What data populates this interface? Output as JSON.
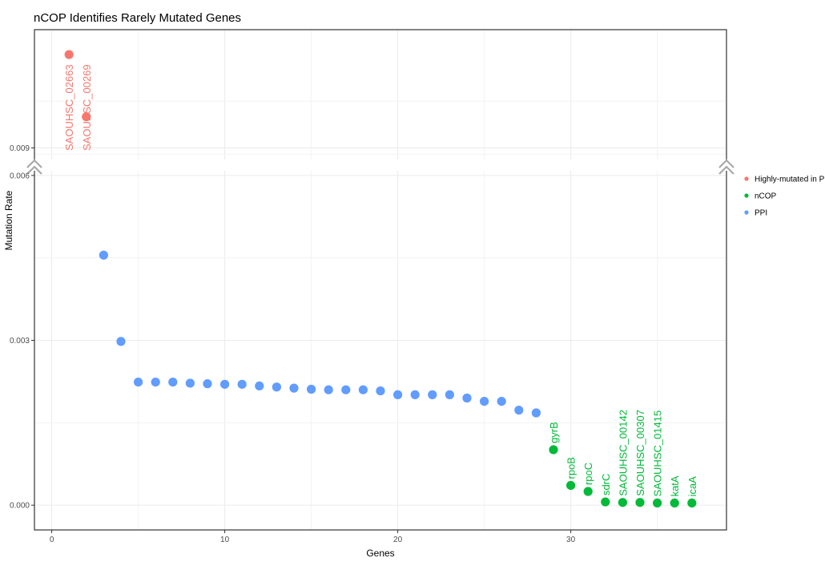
{
  "chart_data": {
    "type": "scatter",
    "title": "nCOP Identifies Rarely Mutated Genes",
    "xlabel": "Genes",
    "ylabel": "Mutation Rate",
    "xlim": [
      -1,
      39
    ],
    "x_ticks": [
      0,
      10,
      20,
      30
    ],
    "x_tick_labels": [
      "0",
      "10",
      "20",
      "30"
    ],
    "y_axis_break": {
      "lower_range": [
        -0.00045,
        0.0061
      ],
      "upper_range": [
        0.0088,
        0.0109
      ]
    },
    "y_ticks_lower": [
      0.0,
      0.003,
      0.006
    ],
    "y_tick_labels_lower": [
      "0.000",
      "0.003",
      "0.006"
    ],
    "y_ticks_upper": [
      0.009
    ],
    "y_tick_labels_upper": [
      "0.009"
    ],
    "grid": true,
    "legend_position": "right",
    "series": [
      {
        "name": "Highly-mutated in PPI",
        "color": "#F8766D",
        "x": [
          1,
          2
        ],
        "y": [
          0.0105,
          0.0095
        ],
        "labels": [
          "SAOUHSC_02663",
          "SAOUHSC_00269"
        ]
      },
      {
        "name": "nCOP",
        "color": "#00BA38",
        "x": [
          29,
          30,
          31,
          32,
          33,
          34,
          35,
          36,
          37
        ],
        "y": [
          0.00101,
          0.00036,
          0.00025,
          6e-05,
          5e-05,
          5e-05,
          4e-05,
          4e-05,
          4e-05
        ],
        "labels": [
          "gyrB",
          "rpoB",
          "rpoC",
          "sdrC",
          "SAOUHSC_00142",
          "SAOUHSC_00307",
          "SAOUHSC_01415",
          "katA",
          "icaA"
        ]
      },
      {
        "name": "PPI",
        "color": "#619CFF",
        "x": [
          3,
          4,
          5,
          6,
          7,
          8,
          9,
          10,
          11,
          12,
          13,
          14,
          15,
          16,
          17,
          18,
          19,
          20,
          21,
          22,
          23,
          24,
          25,
          26,
          27,
          28
        ],
        "y": [
          0.00455,
          0.00298,
          0.00224,
          0.00224,
          0.00224,
          0.00222,
          0.00221,
          0.0022,
          0.0022,
          0.00217,
          0.00215,
          0.00213,
          0.00211,
          0.0021,
          0.0021,
          0.0021,
          0.00208,
          0.00201,
          0.00201,
          0.00201,
          0.00201,
          0.00195,
          0.00189,
          0.00189,
          0.00173,
          0.00168
        ]
      }
    ]
  }
}
